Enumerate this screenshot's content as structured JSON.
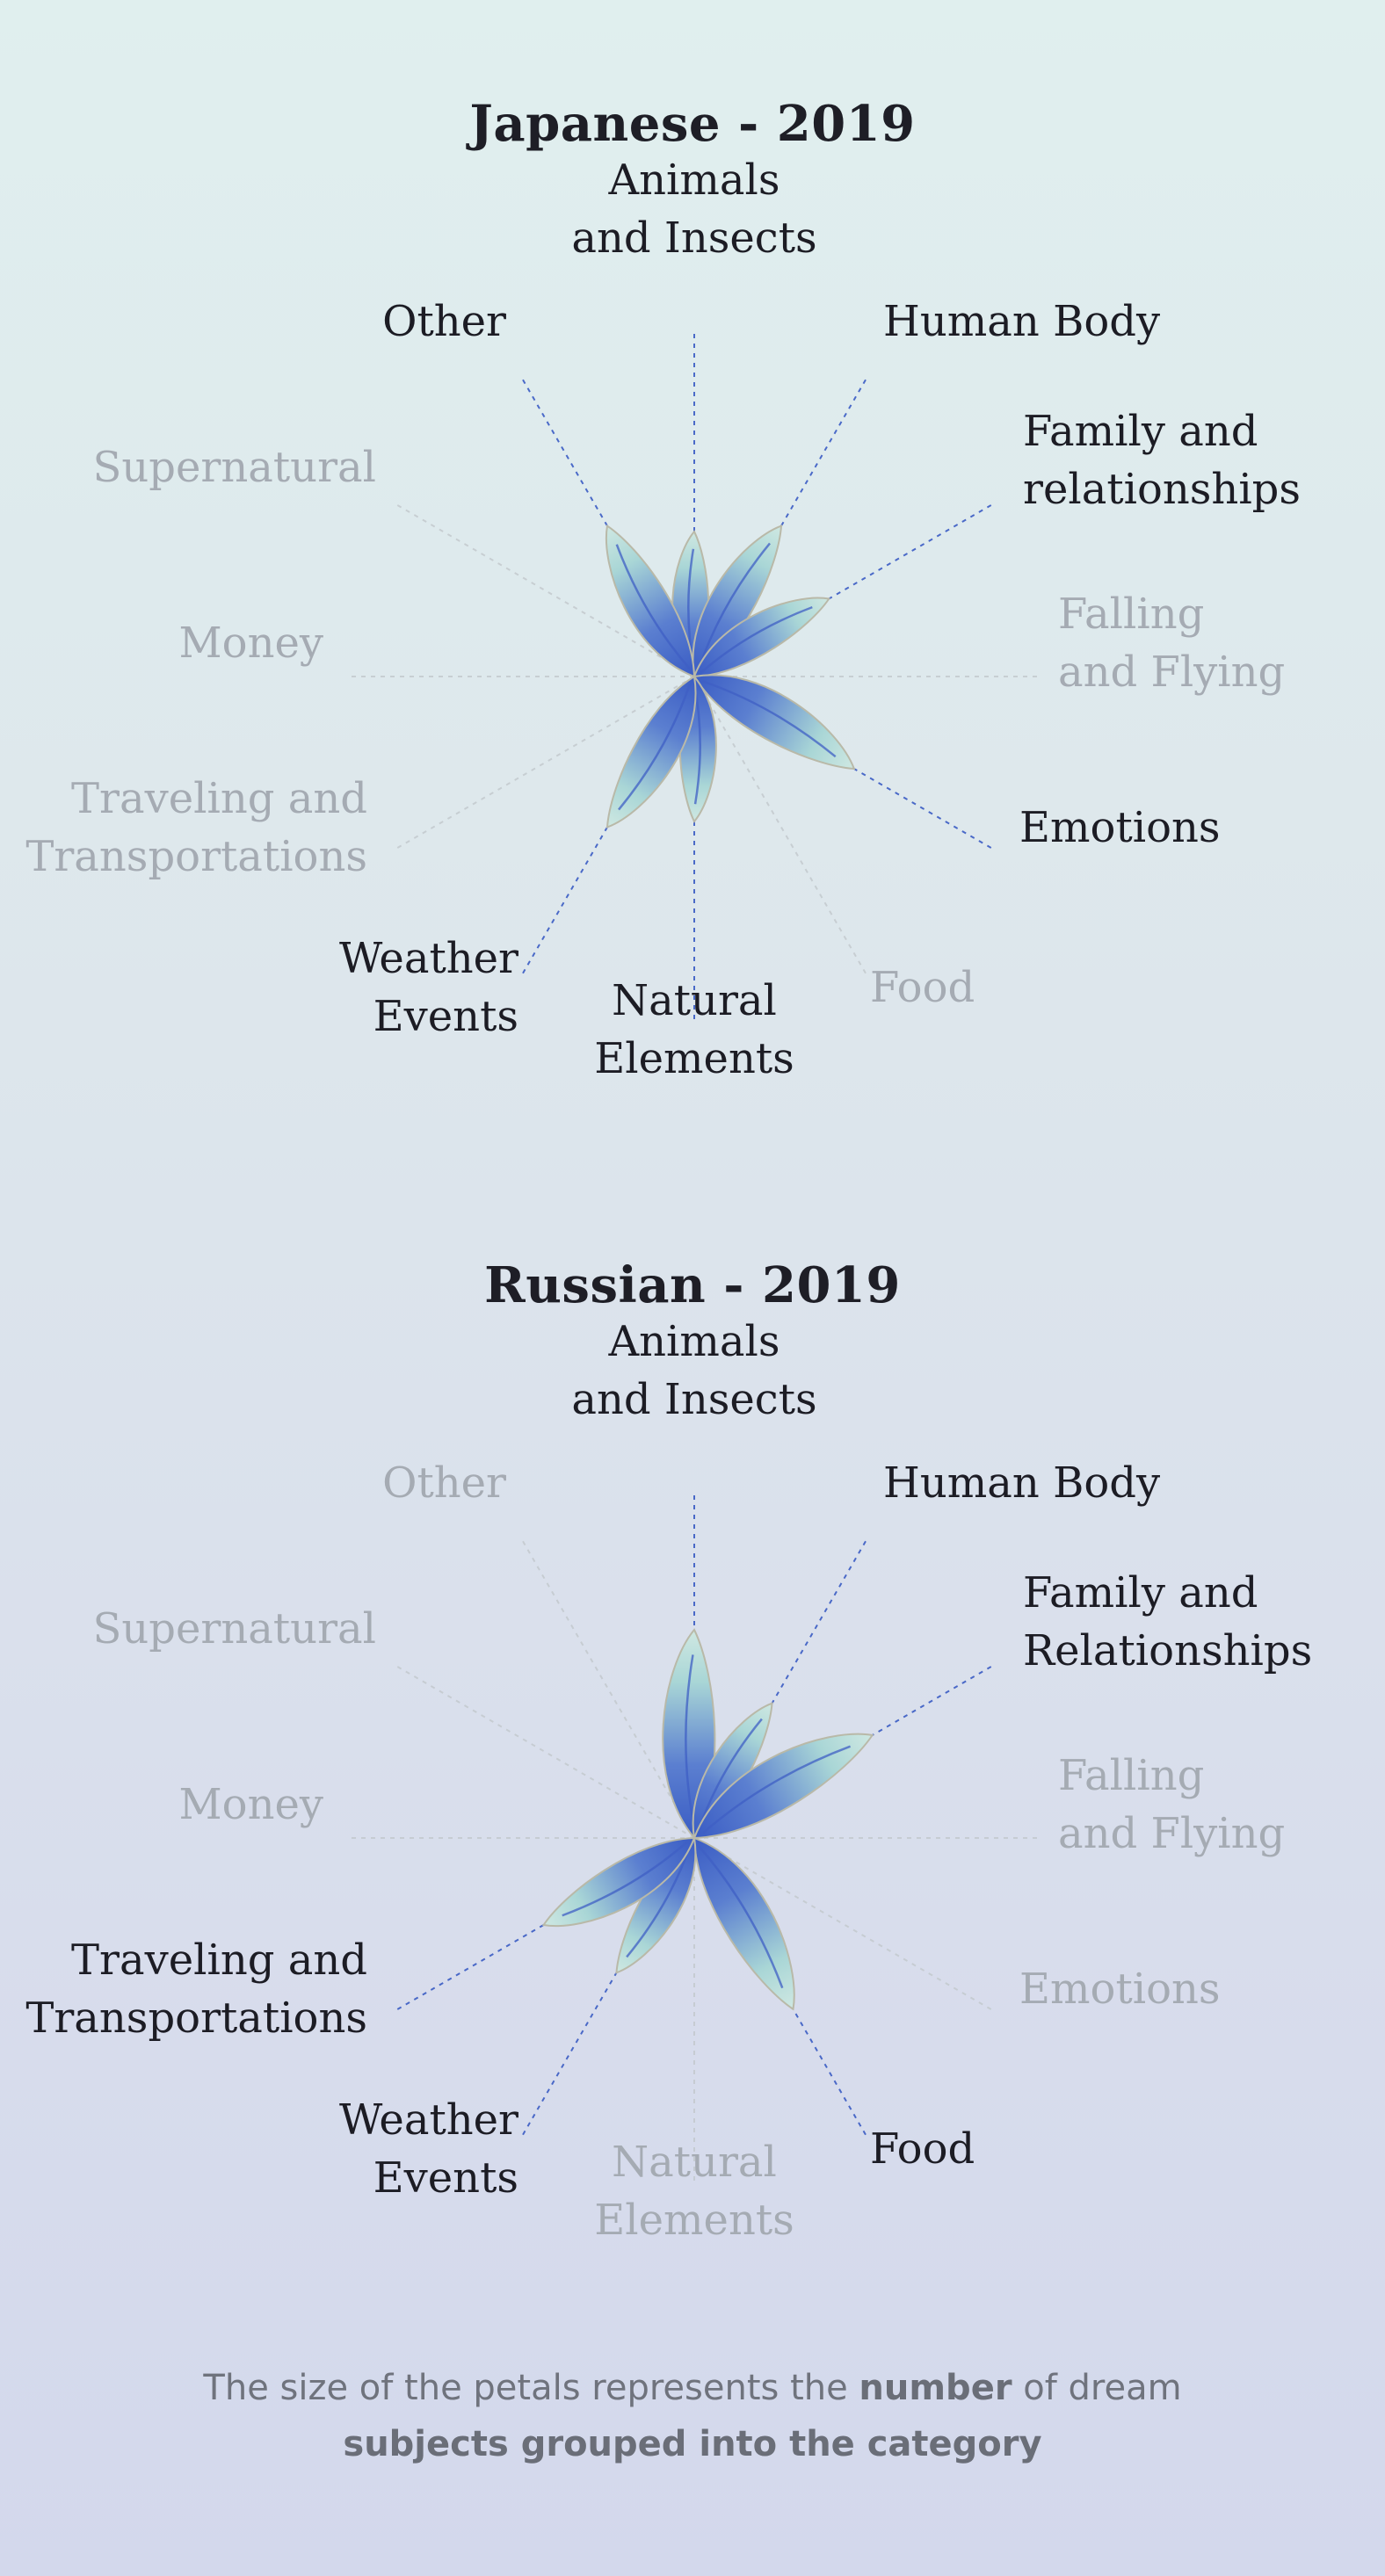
{
  "chart_data": [
    {
      "type": "radial-petal",
      "title": "Japanese - 2019",
      "categories": [
        {
          "key": "animals",
          "label": "Animals\nand Insects",
          "value": 0.55,
          "active": true
        },
        {
          "key": "human",
          "label": "Human Body",
          "value": 0.66,
          "active": true
        },
        {
          "key": "family",
          "label": "Family and\nrelationships",
          "value": 0.59,
          "active": true
        },
        {
          "key": "falling",
          "label": "Falling\nand Flying",
          "value": 0,
          "active": false
        },
        {
          "key": "emotions",
          "label": "Emotions",
          "value": 0.7,
          "active": true
        },
        {
          "key": "food",
          "label": "Food",
          "value": 0,
          "active": false
        },
        {
          "key": "natural",
          "label": "Natural\nElements",
          "value": 0.55,
          "active": true
        },
        {
          "key": "weather",
          "label": "Weather\nEvents",
          "value": 0.66,
          "active": true
        },
        {
          "key": "traveling",
          "label": "Traveling and\nTransportations",
          "value": 0,
          "active": false
        },
        {
          "key": "money",
          "label": "Money",
          "value": 0,
          "active": false
        },
        {
          "key": "supernatural",
          "label": "Supernatural",
          "value": 0,
          "active": false
        },
        {
          "key": "other",
          "label": "Other",
          "value": 0.66,
          "active": true
        }
      ]
    },
    {
      "type": "radial-petal",
      "title": "Russian - 2019",
      "categories": [
        {
          "key": "animals",
          "label": "Animals\nand Insects",
          "value": 0.79,
          "active": true
        },
        {
          "key": "human",
          "label": "Human Body",
          "value": 0.59,
          "active": true
        },
        {
          "key": "family",
          "label": "Family and\nRelationships",
          "value": 0.78,
          "active": true
        },
        {
          "key": "falling",
          "label": "Falling\nand Flying",
          "value": 0,
          "active": false
        },
        {
          "key": "emotions",
          "label": "Emotions",
          "value": 0,
          "active": false
        },
        {
          "key": "food",
          "label": "Food",
          "value": 0.75,
          "active": true
        },
        {
          "key": "natural",
          "label": "Natural\nElements",
          "value": 0,
          "active": false
        },
        {
          "key": "weather",
          "label": "Weather\nEvents",
          "value": 0.59,
          "active": true
        },
        {
          "key": "traveling",
          "label": "Traveling and\nTransportations",
          "value": 0.66,
          "active": true
        },
        {
          "key": "money",
          "label": "Money",
          "value": 0,
          "active": false
        },
        {
          "key": "supernatural",
          "label": "Supernatural",
          "value": 0,
          "active": false
        },
        {
          "key": "other",
          "label": "Other",
          "value": 0,
          "active": false
        }
      ]
    }
  ],
  "footnote": {
    "part1": "The size of the petals represents the ",
    "bold1": "number",
    "part2": " of dream",
    "bold2": "subjects grouped into the category"
  },
  "colors": {
    "petal_outer": "#3a5cc4",
    "petal_inner": "#cfe8e2",
    "petal_stroke": "#b9b9a8",
    "active_line": "#3a5cc4",
    "inactive_line": "#c2c8cc",
    "active_text": "#1c1c24",
    "inactive_text": "#a5abb3"
  }
}
